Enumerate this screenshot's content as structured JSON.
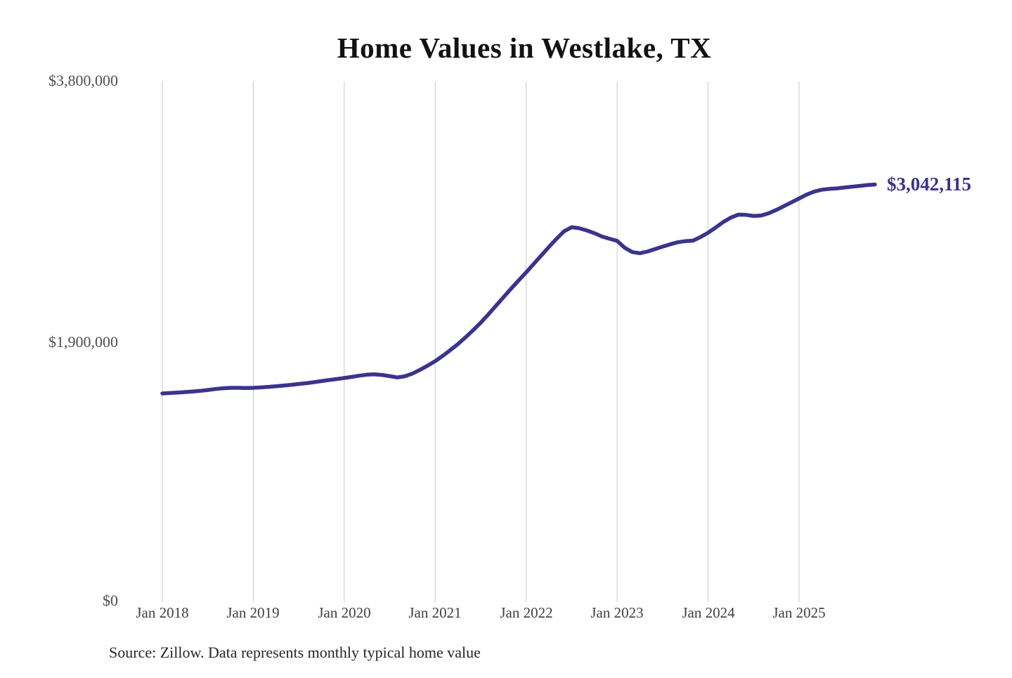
{
  "page": {
    "background": "#ffffff"
  },
  "header": {
    "title": "Home Values in Westlake, TX"
  },
  "footer": {
    "source_note": "Source: Zillow. Data represents monthly typical home value"
  },
  "annotation": {
    "end_value_label": "$3,042,115"
  },
  "colors": {
    "line": "#3b348c",
    "gridline": "#c9c9c9",
    "title_text": "#121212",
    "y_tick_text": "#4f4f4f",
    "x_tick_text": "#3f3f3f",
    "source_text": "#262626",
    "background": "#ffffff"
  },
  "chart_data": {
    "type": "line",
    "title": "Home Values in Westlake, TX",
    "xlabel": "",
    "ylabel": "",
    "ylim": [
      0,
      3800000
    ],
    "grid": "vertical-only",
    "legend": "none",
    "y_ticks": [
      {
        "value": 3800000,
        "label": "$3,800,000"
      },
      {
        "value": 1900000,
        "label": "$1,900,000"
      },
      {
        "value": 0,
        "label": "$0"
      }
    ],
    "x_tick_labels": [
      "Jan 2018",
      "Jan 2019",
      "Jan 2020",
      "Jan 2021",
      "Jan 2022",
      "Jan 2023",
      "Jan 2024",
      "Jan 2025"
    ],
    "end_label": "$3,042,115",
    "series_name": "Typical home value (monthly)",
    "x_monthly": [
      "2018-01",
      "2018-02",
      "2018-03",
      "2018-04",
      "2018-05",
      "2018-06",
      "2018-07",
      "2018-08",
      "2018-09",
      "2018-10",
      "2018-11",
      "2018-12",
      "2019-01",
      "2019-02",
      "2019-03",
      "2019-04",
      "2019-05",
      "2019-06",
      "2019-07",
      "2019-08",
      "2019-09",
      "2019-10",
      "2019-11",
      "2019-12",
      "2020-01",
      "2020-02",
      "2020-03",
      "2020-04",
      "2020-05",
      "2020-06",
      "2020-07",
      "2020-08",
      "2020-09",
      "2020-10",
      "2020-11",
      "2020-12",
      "2021-01",
      "2021-02",
      "2021-03",
      "2021-04",
      "2021-05",
      "2021-06",
      "2021-07",
      "2021-08",
      "2021-09",
      "2021-10",
      "2021-11",
      "2021-12",
      "2022-01",
      "2022-02",
      "2022-03",
      "2022-04",
      "2022-05",
      "2022-06",
      "2022-07",
      "2022-08",
      "2022-09",
      "2022-10",
      "2022-11",
      "2022-12",
      "2023-01",
      "2023-02",
      "2023-03",
      "2023-04",
      "2023-05",
      "2023-06",
      "2023-07",
      "2023-08",
      "2023-09",
      "2023-10",
      "2023-11",
      "2023-12",
      "2024-01",
      "2024-02",
      "2024-03",
      "2024-04",
      "2024-05",
      "2024-06",
      "2024-07",
      "2024-08",
      "2024-09",
      "2024-10",
      "2024-11",
      "2024-12",
      "2025-01",
      "2025-02",
      "2025-03",
      "2025-04",
      "2025-05",
      "2025-06",
      "2025-07",
      "2025-08",
      "2025-09",
      "2025-10",
      "2025-11"
    ],
    "values": [
      1515000,
      1518000,
      1521000,
      1525000,
      1529000,
      1534000,
      1540000,
      1547000,
      1553000,
      1556000,
      1556000,
      1555000,
      1556000,
      1559000,
      1563000,
      1568000,
      1573000,
      1578000,
      1584000,
      1590000,
      1597000,
      1605000,
      1613000,
      1620000,
      1628000,
      1636000,
      1645000,
      1652000,
      1655000,
      1650000,
      1641000,
      1632000,
      1640000,
      1660000,
      1688000,
      1718000,
      1751000,
      1790000,
      1832000,
      1876000,
      1925000,
      1977000,
      2032000,
      2092000,
      2155000,
      2218000,
      2280000,
      2340000,
      2400000,
      2462000,
      2524000,
      2586000,
      2645000,
      2700000,
      2730000,
      2722000,
      2706000,
      2686000,
      2662000,
      2645000,
      2630000,
      2580000,
      2548000,
      2540000,
      2552000,
      2570000,
      2588000,
      2605000,
      2620000,
      2628000,
      2632000,
      2658000,
      2690000,
      2728000,
      2768000,
      2800000,
      2822000,
      2820000,
      2812000,
      2815000,
      2832000,
      2856000,
      2884000,
      2912000,
      2940000,
      2968000,
      2990000,
      3004000,
      3010000,
      3014000,
      3020000,
      3026000,
      3032000,
      3038000,
      3042115
    ]
  }
}
